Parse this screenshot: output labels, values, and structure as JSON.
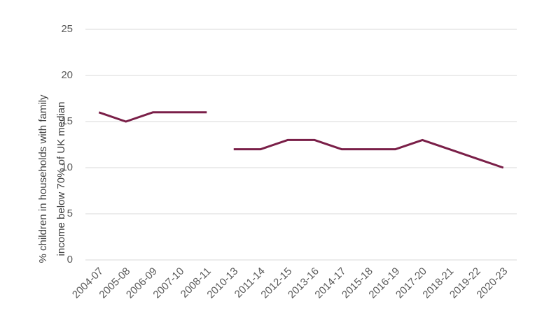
{
  "chart_data": {
    "type": "line",
    "ylabel": [
      "% children in households with family",
      "income below 70% of UK median"
    ],
    "categories": [
      "2004-07",
      "2005-08",
      "2006-09",
      "2007-10",
      "2008-11",
      "2010-13",
      "2011-14",
      "2012-15",
      "2013-16",
      "2014-17",
      "2015-18",
      "2016-19",
      "2017-20",
      "2018-21",
      "2019-22",
      "2020-23"
    ],
    "series": [
      {
        "color": "#7a1f48",
        "values": [
          16,
          15,
          16,
          16,
          16,
          null,
          null,
          null,
          null,
          null,
          null,
          null,
          null,
          null,
          null,
          null
        ]
      },
      {
        "color": "#7a1f48",
        "values": [
          null,
          null,
          null,
          null,
          null,
          12,
          12,
          13,
          13,
          12,
          12,
          12,
          13,
          12,
          11,
          10
        ]
      }
    ],
    "ylim": [
      0,
      25
    ],
    "yticks": [
      0,
      5,
      10,
      15,
      20,
      25
    ],
    "grid": true
  }
}
